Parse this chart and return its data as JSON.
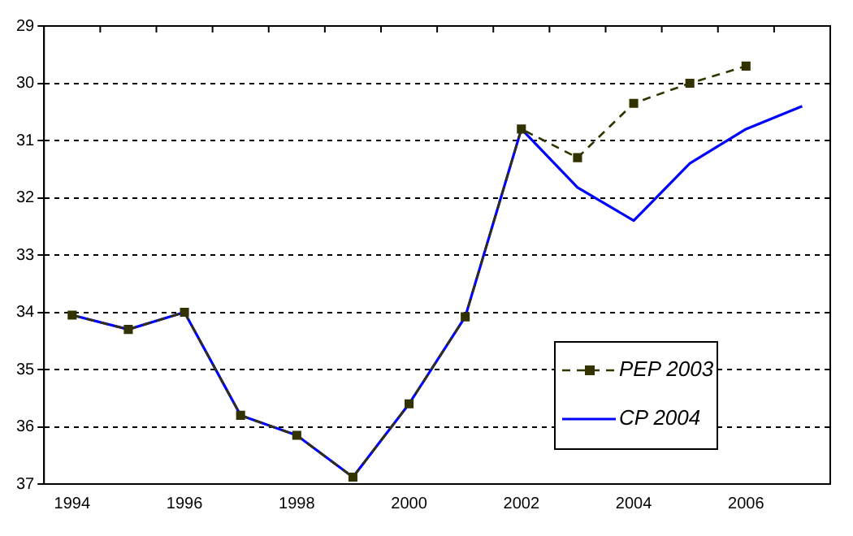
{
  "chart_data": {
    "type": "line",
    "categories": [
      "1994",
      null,
      "1996",
      null,
      "1998",
      null,
      "2000",
      null,
      "2002",
      null,
      "2004",
      null,
      "2006",
      null
    ],
    "series": [
      {
        "name": "PEP 2003",
        "color": "#333300",
        "line_style": "dashed",
        "marker": "square",
        "values": [
          34.05,
          34.3,
          34.0,
          35.8,
          36.15,
          36.88,
          35.6,
          34.08,
          30.8,
          31.3,
          30.35,
          30.0,
          29.7,
          null
        ]
      },
      {
        "name": "CP 2004",
        "color": "#0000ff",
        "line_style": "solid",
        "marker": "none",
        "values": [
          34.05,
          34.3,
          34.0,
          35.8,
          36.15,
          36.88,
          35.6,
          34.08,
          30.8,
          31.82,
          32.4,
          31.4,
          30.8,
          30.4
        ]
      }
    ],
    "ylim": [
      37,
      29
    ],
    "yticks": [
      29,
      30,
      31,
      32,
      33,
      34,
      35,
      36,
      37
    ],
    "grid": "y",
    "legend": "bottom right"
  }
}
